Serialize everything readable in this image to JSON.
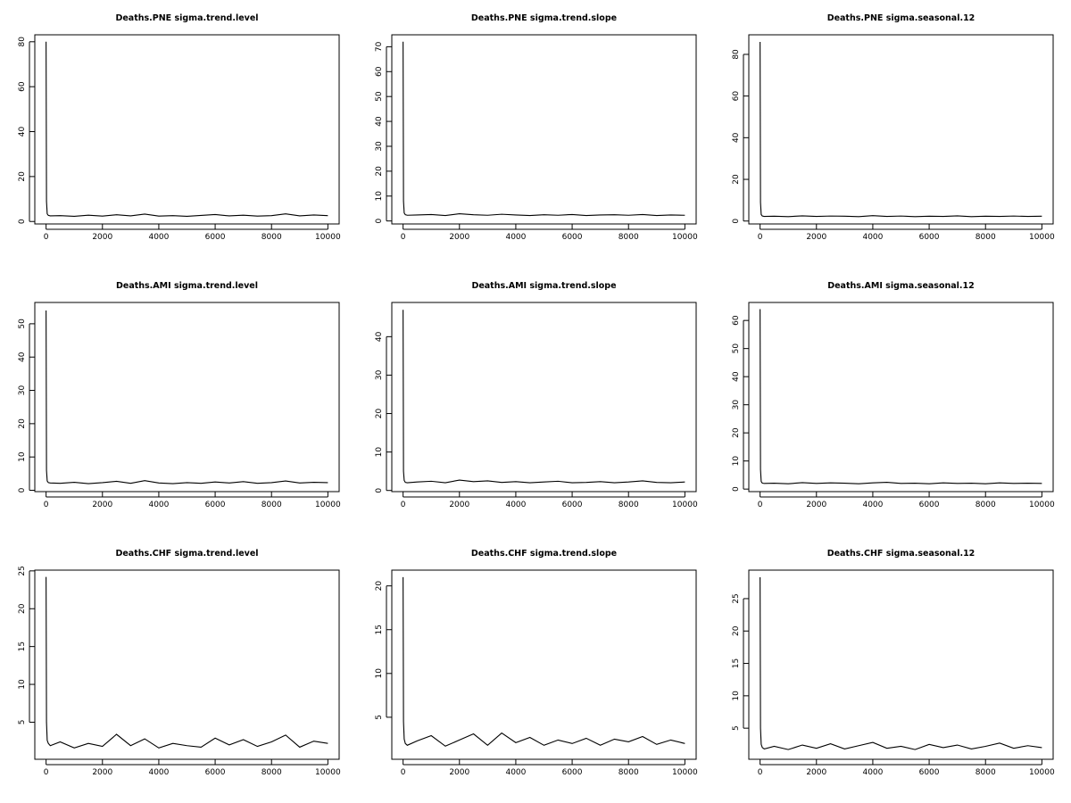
{
  "chart_data": [
    {
      "type": "line",
      "title": "Deaths.PNE sigma.trend.level",
      "color": "#000000",
      "x": [
        0,
        15,
        40,
        80,
        150,
        500,
        1000,
        1500,
        2000,
        2500,
        3000,
        3500,
        4000,
        4500,
        5000,
        5500,
        6000,
        6500,
        7000,
        7500,
        8000,
        8500,
        9000,
        9500,
        10000
      ],
      "values": [
        80,
        9,
        3.4,
        2.7,
        2.5,
        2.6,
        2.3,
        2.8,
        2.4,
        3.0,
        2.5,
        3.3,
        2.4,
        2.6,
        2.3,
        2.7,
        3.1,
        2.5,
        2.8,
        2.4,
        2.6,
        3.4,
        2.5,
        2.9,
        2.6
      ],
      "xlim": [
        -400,
        10400
      ],
      "ylim": [
        -1.1,
        83.1
      ],
      "xticks": [
        0,
        2000,
        4000,
        6000,
        8000,
        10000
      ],
      "yticks": [
        0,
        20,
        40,
        60,
        80
      ]
    },
    {
      "type": "line",
      "title": "Deaths.PNE sigma.trend.slope",
      "color": "#000000",
      "x": [
        0,
        15,
        40,
        80,
        150,
        500,
        1000,
        1500,
        2000,
        2500,
        3000,
        3500,
        4000,
        4500,
        5000,
        5500,
        6000,
        6500,
        7000,
        7500,
        8000,
        8500,
        9000,
        9500,
        10000
      ],
      "values": [
        72,
        8,
        3.2,
        2.5,
        2.3,
        2.4,
        2.6,
        2.2,
        2.9,
        2.5,
        2.3,
        2.7,
        2.4,
        2.2,
        2.5,
        2.3,
        2.6,
        2.2,
        2.4,
        2.5,
        2.3,
        2.6,
        2.2,
        2.4,
        2.3
      ],
      "xlim": [
        -400,
        10400
      ],
      "ylim": [
        -1.2,
        74.8
      ],
      "xticks": [
        0,
        2000,
        4000,
        6000,
        8000,
        10000
      ],
      "yticks": [
        0,
        10,
        20,
        30,
        40,
        50,
        60,
        70
      ]
    },
    {
      "type": "line",
      "title": "Deaths.PNE sigma.seasonal.12",
      "color": "#000000",
      "x": [
        0,
        15,
        40,
        80,
        150,
        500,
        1000,
        1500,
        2000,
        2500,
        3000,
        3500,
        4000,
        4500,
        5000,
        5500,
        6000,
        6500,
        7000,
        7500,
        8000,
        8500,
        9000,
        9500,
        10000
      ],
      "values": [
        86,
        9,
        3.1,
        2.4,
        2.2,
        2.3,
        2.1,
        2.5,
        2.2,
        2.4,
        2.3,
        2.1,
        2.6,
        2.2,
        2.4,
        2.1,
        2.3,
        2.2,
        2.5,
        2.1,
        2.3,
        2.2,
        2.4,
        2.2,
        2.3
      ],
      "xlim": [
        -400,
        10400
      ],
      "ylim": [
        -1.4,
        89.4
      ],
      "xticks": [
        0,
        2000,
        4000,
        6000,
        8000,
        10000
      ],
      "yticks": [
        0,
        20,
        40,
        60,
        80
      ]
    },
    {
      "type": "line",
      "title": "Deaths.AMI sigma.trend.level",
      "color": "#000000",
      "x": [
        0,
        15,
        40,
        80,
        150,
        500,
        1000,
        1500,
        2000,
        2500,
        3000,
        3500,
        4000,
        4500,
        5000,
        5500,
        6000,
        6500,
        7000,
        7500,
        8000,
        8500,
        9000,
        9500,
        10000
      ],
      "values": [
        54,
        6,
        2.8,
        2.3,
        2.2,
        2.1,
        2.4,
        2.0,
        2.3,
        2.7,
        2.1,
        2.9,
        2.2,
        2.0,
        2.3,
        2.1,
        2.5,
        2.2,
        2.6,
        2.1,
        2.3,
        2.8,
        2.2,
        2.4,
        2.3
      ],
      "xlim": [
        -400,
        10400
      ],
      "ylim": [
        -0.4,
        56.4
      ],
      "xticks": [
        0,
        2000,
        4000,
        6000,
        8000,
        10000
      ],
      "yticks": [
        0,
        10,
        20,
        30,
        40,
        50
      ]
    },
    {
      "type": "line",
      "title": "Deaths.AMI sigma.trend.slope",
      "color": "#000000",
      "x": [
        0,
        15,
        40,
        80,
        150,
        500,
        1000,
        1500,
        2000,
        2500,
        3000,
        3500,
        4000,
        4500,
        5000,
        5500,
        6000,
        6500,
        7000,
        7500,
        8000,
        8500,
        9000,
        9500,
        10000
      ],
      "values": [
        47,
        5,
        2.6,
        2.1,
        2.0,
        2.2,
        2.4,
        2.0,
        2.7,
        2.3,
        2.5,
        2.1,
        2.3,
        2.0,
        2.2,
        2.4,
        2.0,
        2.1,
        2.3,
        2.0,
        2.2,
        2.5,
        2.1,
        2.0,
        2.2
      ],
      "xlim": [
        -400,
        10400
      ],
      "ylim": [
        -0.3,
        48.9
      ],
      "xticks": [
        0,
        2000,
        4000,
        6000,
        8000,
        10000
      ],
      "yticks": [
        0,
        10,
        20,
        30,
        40
      ]
    },
    {
      "type": "line",
      "title": "Deaths.AMI sigma.seasonal.12",
      "color": "#000000",
      "x": [
        0,
        15,
        40,
        80,
        150,
        500,
        1000,
        1500,
        2000,
        2500,
        3000,
        3500,
        4000,
        4500,
        5000,
        5500,
        6000,
        6500,
        7000,
        7500,
        8000,
        8500,
        9000,
        9500,
        10000
      ],
      "values": [
        64,
        7,
        2.7,
        2.1,
        2.0,
        2.1,
        1.9,
        2.3,
        2.0,
        2.2,
        2.1,
        1.9,
        2.2,
        2.4,
        2.0,
        2.1,
        1.9,
        2.2,
        2.0,
        2.1,
        1.9,
        2.2,
        2.0,
        2.1,
        2.0
      ],
      "xlim": [
        -400,
        10400
      ],
      "ylim": [
        -0.9,
        66.4
      ],
      "xticks": [
        0,
        2000,
        4000,
        6000,
        8000,
        10000
      ],
      "yticks": [
        0,
        10,
        20,
        30,
        40,
        50,
        60
      ]
    },
    {
      "type": "line",
      "title": "Deaths.CHF sigma.trend.level",
      "color": "#000000",
      "x": [
        0,
        15,
        40,
        80,
        150,
        500,
        1000,
        1500,
        2000,
        2500,
        3000,
        3500,
        4000,
        4500,
        5000,
        5500,
        6000,
        6500,
        7000,
        7500,
        8000,
        8500,
        9000,
        9500,
        10000
      ],
      "values": [
        24.2,
        5,
        2.6,
        2.2,
        1.9,
        2.4,
        1.6,
        2.2,
        1.8,
        3.4,
        1.9,
        2.8,
        1.6,
        2.2,
        1.9,
        1.7,
        2.9,
        2.0,
        2.7,
        1.8,
        2.4,
        3.3,
        1.7,
        2.5,
        2.2
      ],
      "xlim": [
        -400,
        10400
      ],
      "ylim": [
        0.1,
        25.1
      ],
      "xticks": [
        0,
        2000,
        4000,
        6000,
        8000,
        10000
      ],
      "yticks": [
        5,
        10,
        15,
        20,
        25
      ]
    },
    {
      "type": "line",
      "title": "Deaths.CHF sigma.trend.slope",
      "color": "#000000",
      "x": [
        0,
        15,
        40,
        80,
        150,
        500,
        1000,
        1500,
        2000,
        2500,
        3000,
        3500,
        4000,
        4500,
        5000,
        5500,
        6000,
        6500,
        7000,
        7500,
        8000,
        8500,
        9000,
        9500,
        10000
      ],
      "values": [
        21,
        4.5,
        2.5,
        2.0,
        1.8,
        2.3,
        2.9,
        1.7,
        2.4,
        3.1,
        1.8,
        3.2,
        2.1,
        2.7,
        1.8,
        2.4,
        2.0,
        2.6,
        1.8,
        2.5,
        2.2,
        2.8,
        1.9,
        2.4,
        2.0
      ],
      "xlim": [
        -400,
        10400
      ],
      "ylim": [
        0.2,
        21.8
      ],
      "xticks": [
        0,
        2000,
        4000,
        6000,
        8000,
        10000
      ],
      "yticks": [
        5,
        10,
        15,
        20
      ]
    },
    {
      "type": "line",
      "title": "Deaths.CHF sigma.seasonal.12",
      "color": "#000000",
      "x": [
        0,
        15,
        40,
        80,
        150,
        500,
        1000,
        1500,
        2000,
        2500,
        3000,
        3500,
        4000,
        4500,
        5000,
        5500,
        6000,
        6500,
        7000,
        7500,
        8000,
        8500,
        9000,
        9500,
        10000
      ],
      "values": [
        28.3,
        5,
        2.5,
        2.0,
        1.8,
        2.2,
        1.7,
        2.4,
        1.9,
        2.6,
        1.8,
        2.3,
        2.8,
        1.9,
        2.2,
        1.7,
        2.5,
        2.0,
        2.4,
        1.8,
        2.2,
        2.7,
        1.9,
        2.3,
        2.0
      ],
      "xlim": [
        -400,
        10400
      ],
      "ylim": [
        0.2,
        29.4
      ],
      "xticks": [
        0,
        2000,
        4000,
        6000,
        8000,
        10000
      ],
      "yticks": [
        5,
        10,
        15,
        20,
        25
      ]
    }
  ]
}
